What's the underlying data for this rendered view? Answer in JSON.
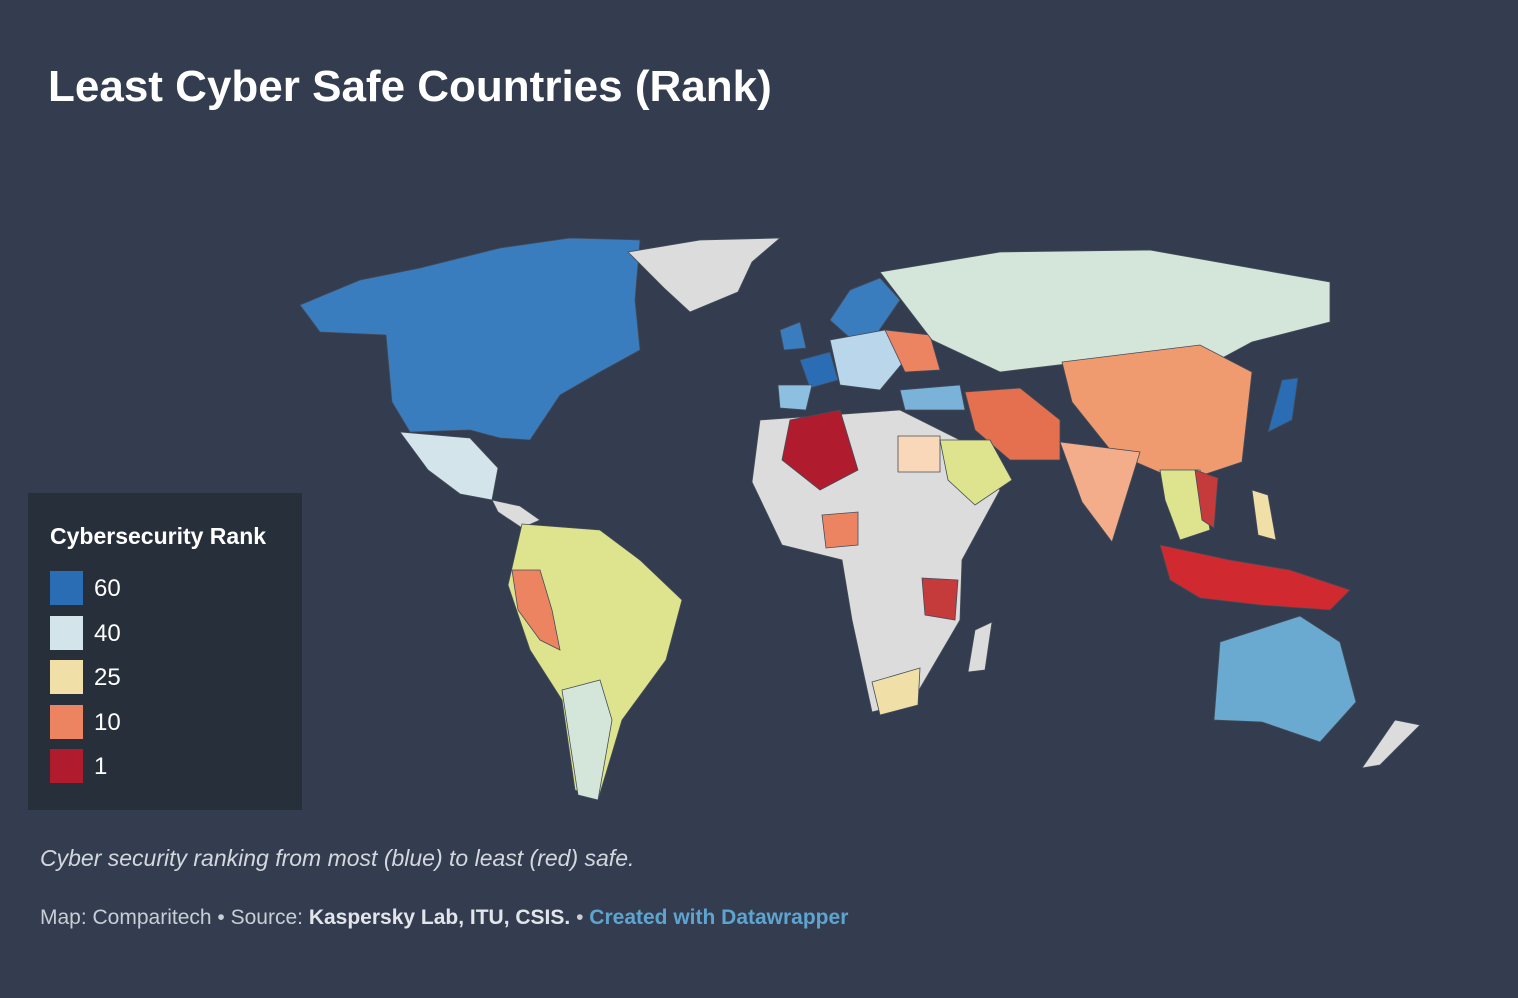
{
  "header": {
    "title": "Least Cyber Safe Countries (Rank)"
  },
  "legend": {
    "title": "Cybersecurity Rank",
    "items": [
      {
        "label": "60",
        "color": "#2a6db4"
      },
      {
        "label": "40",
        "color": "#d3e4ea"
      },
      {
        "label": "25",
        "color": "#f0e0a8"
      },
      {
        "label": "10",
        "color": "#ec8462"
      },
      {
        "label": "1",
        "color": "#b01c2e"
      }
    ]
  },
  "description": "Cyber security ranking from most (blue) to least (red) safe.",
  "footer": {
    "prefix": "Map: Comparitech • Source:",
    "source": "Kaspersky Lab, ITU, CSIS.",
    "separator": "•",
    "link": "Created with Datawrapper"
  }
}
